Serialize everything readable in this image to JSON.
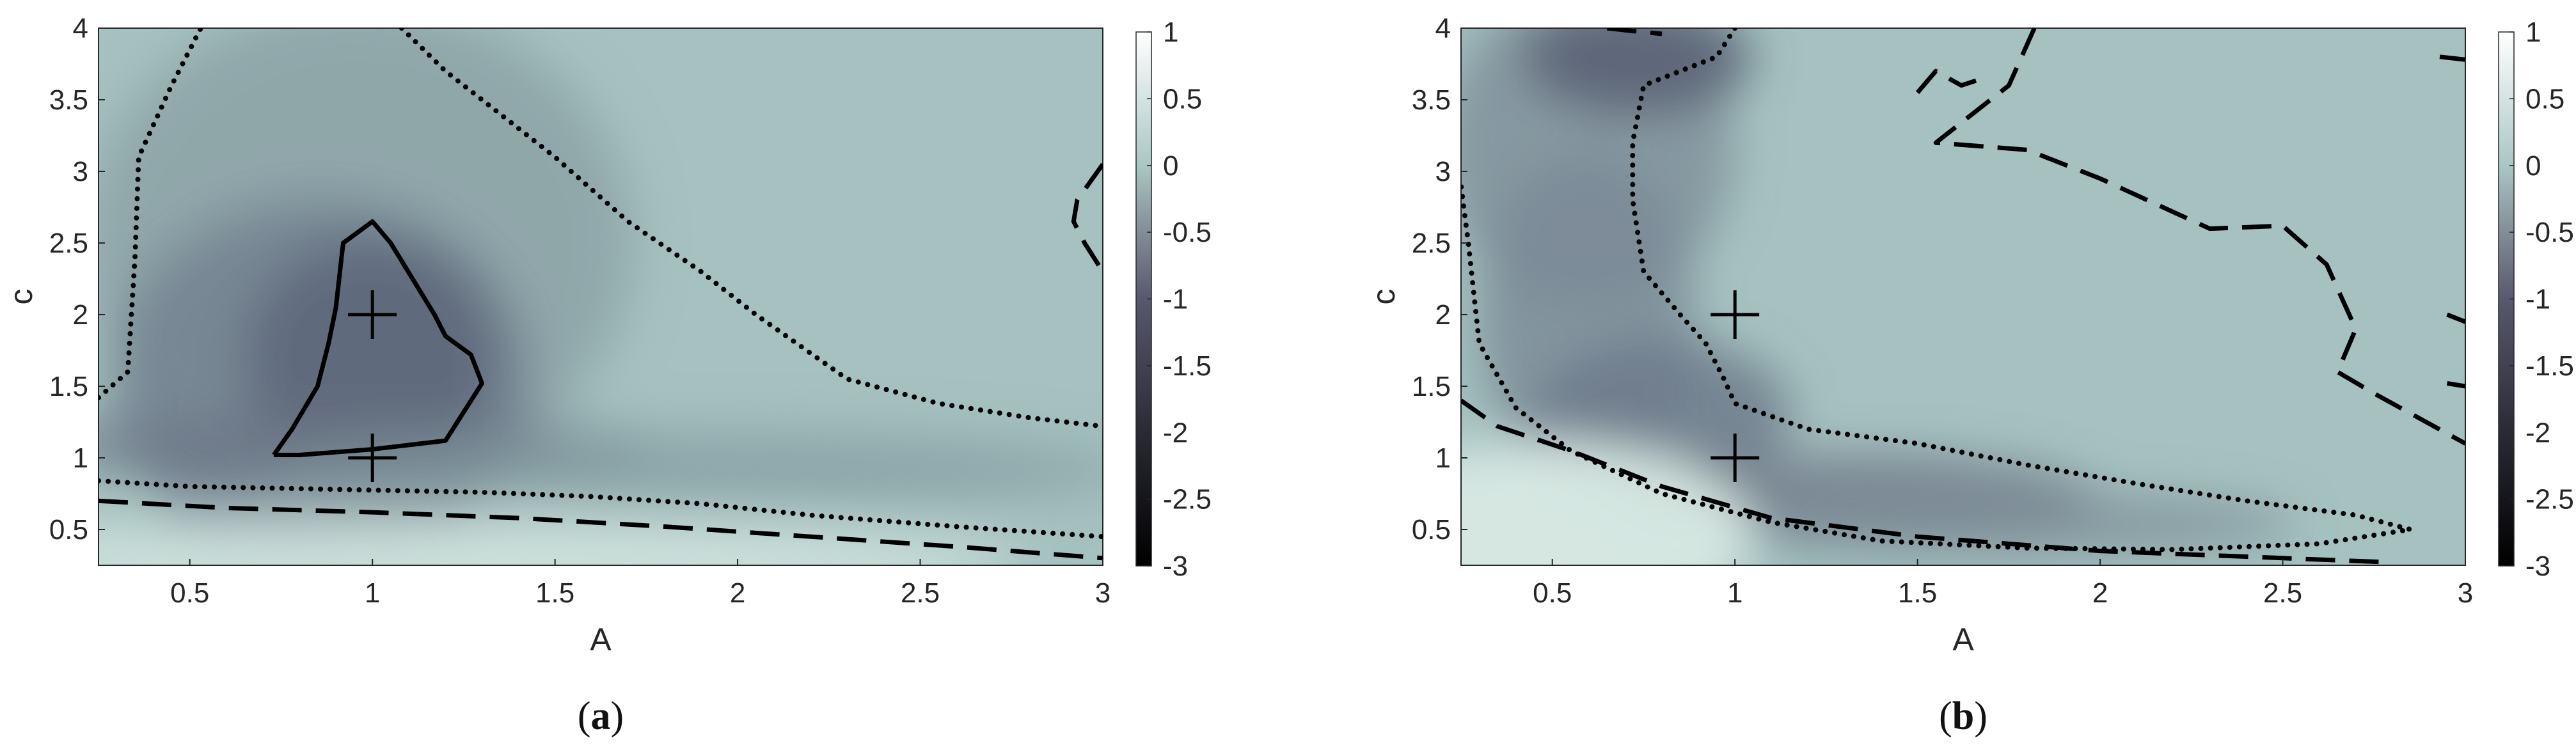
{
  "chart_data": [
    {
      "type": "heatmap",
      "caption_letter": "a",
      "xlabel": "A",
      "ylabel": "c",
      "xlim": [
        0.25,
        3
      ],
      "ylim": [
        0.25,
        4
      ],
      "xticks": [
        0.5,
        1,
        1.5,
        2,
        2.5,
        3
      ],
      "yticks": [
        0.5,
        1,
        1.5,
        2,
        2.5,
        3,
        3.5,
        4
      ],
      "colorbar": {
        "range": [
          -3,
          1
        ],
        "ticks": [
          -3,
          -2.5,
          -2,
          -1.5,
          -1,
          -0.5,
          0,
          0.5,
          1
        ],
        "colormap": [
          "#000000",
          "#2a2a36",
          "#58586e",
          "#8a98a0",
          "#a9c7c5",
          "#ffffff"
        ]
      },
      "markers": [
        {
          "x": 1,
          "y": 2
        },
        {
          "x": 1,
          "y": 1
        }
      ],
      "contours": [
        {
          "style": "solid",
          "points": [
            [
              0.73,
              1.02
            ],
            [
              0.8,
              1.02
            ],
            [
              1.0,
              1.06
            ],
            [
              1.2,
              1.12
            ],
            [
              1.22,
              1.2
            ],
            [
              1.3,
              1.52
            ],
            [
              1.27,
              1.72
            ],
            [
              1.2,
              1.85
            ],
            [
              1.17,
              2.0
            ],
            [
              1.05,
              2.5
            ],
            [
              1.0,
              2.65
            ],
            [
              0.92,
              2.5
            ],
            [
              0.9,
              2.05
            ],
            [
              0.88,
              1.8
            ],
            [
              0.85,
              1.5
            ],
            [
              0.78,
              1.2
            ],
            [
              0.73,
              1.02
            ]
          ]
        },
        {
          "style": "dotted",
          "points": [
            [
              0.25,
              1.42
            ],
            [
              0.33,
              1.6
            ],
            [
              0.35,
              2.4
            ],
            [
              0.36,
              3.1
            ],
            [
              0.45,
              3.6
            ],
            [
              0.53,
              4.0
            ]
          ]
        },
        {
          "style": "dotted",
          "points": [
            [
              1.08,
              4.0
            ],
            [
              1.2,
              3.7
            ],
            [
              1.35,
              3.4
            ],
            [
              1.5,
              3.1
            ],
            [
              1.7,
              2.65
            ],
            [
              1.9,
              2.3
            ],
            [
              2.05,
              2.0
            ],
            [
              2.3,
              1.55
            ],
            [
              2.55,
              1.38
            ],
            [
              2.8,
              1.28
            ],
            [
              3.0,
              1.22
            ]
          ]
        },
        {
          "style": "dotted",
          "points": [
            [
              0.25,
              0.84
            ],
            [
              0.5,
              0.8
            ],
            [
              0.9,
              0.78
            ],
            [
              1.3,
              0.76
            ],
            [
              1.6,
              0.73
            ],
            [
              1.9,
              0.68
            ],
            [
              2.2,
              0.6
            ],
            [
              2.6,
              0.52
            ],
            [
              3.0,
              0.45
            ]
          ]
        },
        {
          "style": "dashed",
          "points": [
            [
              0.25,
              0.7
            ],
            [
              0.6,
              0.65
            ],
            [
              1.0,
              0.62
            ],
            [
              1.4,
              0.58
            ],
            [
              1.8,
              0.52
            ],
            [
              2.2,
              0.45
            ],
            [
              2.6,
              0.38
            ],
            [
              3.0,
              0.3
            ]
          ]
        },
        {
          "style": "dashed",
          "points": [
            [
              3.0,
              3.05
            ],
            [
              2.93,
              2.8
            ],
            [
              2.92,
              2.65
            ],
            [
              2.95,
              2.5
            ],
            [
              3.0,
              2.3
            ]
          ]
        }
      ]
    },
    {
      "type": "heatmap",
      "caption_letter": "b",
      "xlabel": "A",
      "ylabel": "c",
      "xlim": [
        0.25,
        3
      ],
      "ylim": [
        0.25,
        4
      ],
      "xticks": [
        0.5,
        1,
        1.5,
        2,
        2.5,
        3
      ],
      "yticks": [
        0.5,
        1,
        1.5,
        2,
        2.5,
        3,
        3.5,
        4
      ],
      "colorbar": {
        "range": [
          -3,
          1
        ],
        "ticks": [
          -3,
          -2.5,
          -2,
          -1.5,
          -1,
          -0.5,
          0,
          0.5,
          1
        ],
        "colormap": [
          "#000000",
          "#2a2a36",
          "#58586e",
          "#8a98a0",
          "#a9c7c5",
          "#ffffff"
        ]
      },
      "markers": [
        {
          "x": 1,
          "y": 2
        },
        {
          "x": 1,
          "y": 1
        }
      ],
      "contours": [
        {
          "style": "dotted",
          "points": [
            [
              1.0,
              4.0
            ],
            [
              0.95,
              3.8
            ],
            [
              0.75,
              3.6
            ],
            [
              0.72,
              3.2
            ],
            [
              0.72,
              2.8
            ],
            [
              0.75,
              2.3
            ],
            [
              0.85,
              2.0
            ],
            [
              0.92,
              1.8
            ],
            [
              0.97,
              1.55
            ],
            [
              1.0,
              1.38
            ],
            [
              1.2,
              1.2
            ],
            [
              1.5,
              1.1
            ],
            [
              1.8,
              0.95
            ],
            [
              2.1,
              0.82
            ],
            [
              2.4,
              0.7
            ],
            [
              2.7,
              0.6
            ],
            [
              2.85,
              0.5
            ],
            [
              2.6,
              0.4
            ],
            [
              2.2,
              0.36
            ],
            [
              1.8,
              0.37
            ],
            [
              1.4,
              0.42
            ],
            [
              1.1,
              0.55
            ],
            [
              0.8,
              0.75
            ],
            [
              0.55,
              1.05
            ],
            [
              0.4,
              1.35
            ],
            [
              0.3,
              1.8
            ],
            [
              0.27,
              2.5
            ],
            [
              0.25,
              2.9
            ]
          ]
        },
        {
          "style": "dashed",
          "points": [
            [
              0.25,
              1.4
            ],
            [
              0.35,
              1.22
            ],
            [
              0.55,
              1.05
            ],
            [
              0.8,
              0.8
            ],
            [
              1.1,
              0.58
            ],
            [
              1.5,
              0.45
            ],
            [
              2.0,
              0.35
            ],
            [
              2.5,
              0.3
            ],
            [
              2.8,
              0.27
            ]
          ]
        },
        {
          "style": "dashed",
          "points": [
            [
              1.82,
              4.0
            ],
            [
              1.75,
              3.6
            ],
            [
              1.55,
              3.2
            ],
            [
              1.8,
              3.15
            ],
            [
              2.0,
              2.95
            ],
            [
              2.3,
              2.6
            ],
            [
              2.5,
              2.62
            ],
            [
              2.62,
              2.35
            ],
            [
              2.7,
              1.9
            ],
            [
              2.65,
              1.6
            ],
            [
              2.75,
              1.45
            ],
            [
              3.0,
              1.1
            ]
          ]
        },
        {
          "style": "dashed",
          "points": [
            [
              0.65,
              4.0
            ],
            [
              0.72,
              3.98
            ],
            [
              0.8,
              3.96
            ]
          ]
        },
        {
          "style": "dashed",
          "points": [
            [
              1.5,
              3.55
            ],
            [
              1.55,
              3.7
            ],
            [
              1.62,
              3.6
            ],
            [
              1.68,
              3.65
            ]
          ]
        },
        {
          "style": "dashed",
          "points": [
            [
              2.93,
              3.8
            ],
            [
              3.0,
              3.78
            ]
          ]
        },
        {
          "style": "dashed",
          "points": [
            [
              2.95,
              2.0
            ],
            [
              3.0,
              1.95
            ]
          ]
        },
        {
          "style": "dashed",
          "points": [
            [
              2.95,
              1.52
            ],
            [
              3.0,
              1.5
            ]
          ]
        }
      ]
    }
  ]
}
